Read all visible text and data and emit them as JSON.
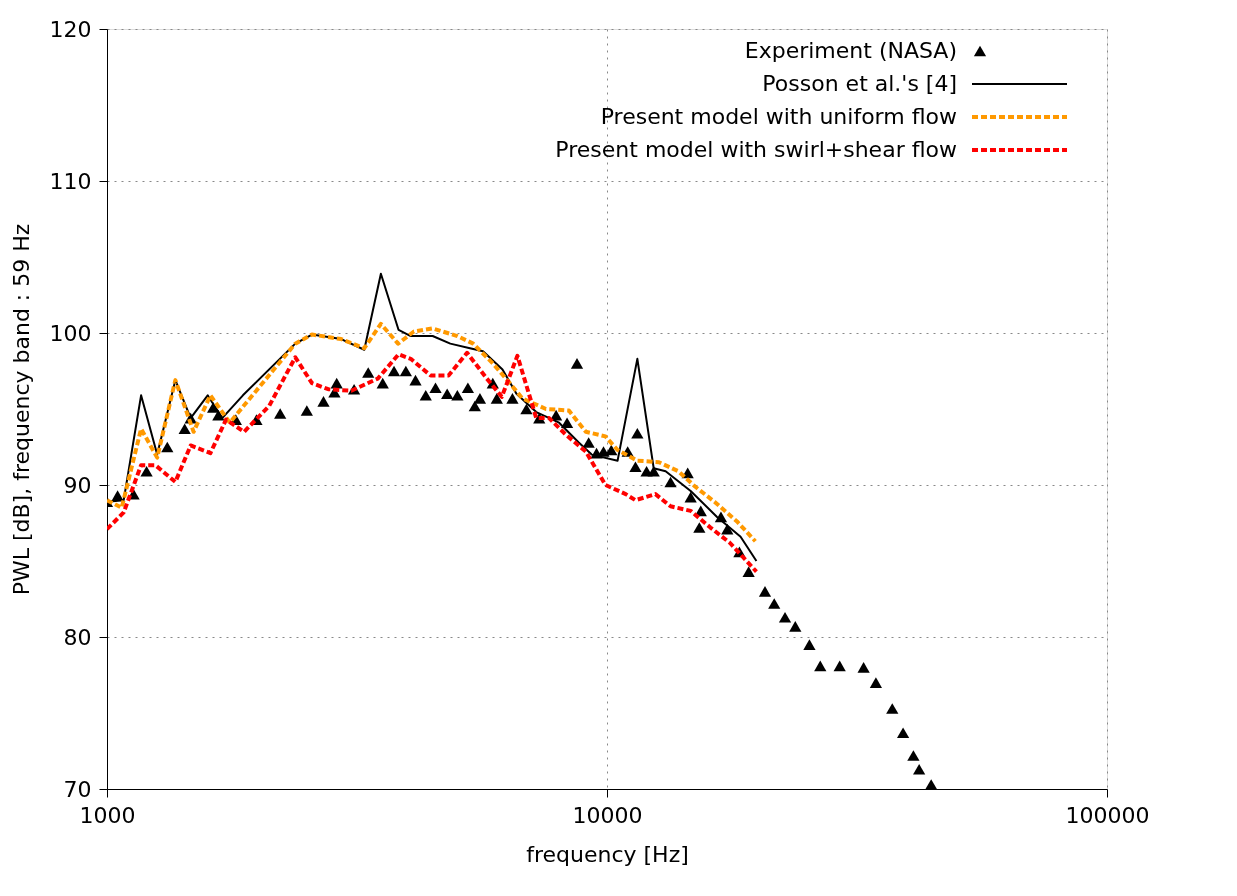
{
  "chart_data": {
    "type": "line",
    "xlabel": "frequency [Hz]",
    "ylabel": "PWL [dB], frequency band : 59 Hz",
    "log": "x",
    "xlim": [
      1000,
      100000
    ],
    "xticks": [
      1000,
      10000,
      100000
    ],
    "ylim": [
      70,
      120
    ],
    "yticks": [
      70,
      80,
      90,
      100,
      110,
      120
    ],
    "grid": true,
    "legend": "top right",
    "series": [
      {
        "name": "Experiment (NASA)",
        "type": "scatter",
        "marker": "triangle",
        "color": "#000000",
        "x": [
          1000,
          1050,
          1130,
          1200,
          1320,
          1430,
          1470,
          1630,
          1670,
          1810,
          1990,
          2220,
          2510,
          2710,
          2850,
          2880,
          3120,
          3330,
          3560,
          3750,
          3960,
          4140,
          4340,
          4540,
          4790,
          5020,
          5270,
          5440,
          5570,
          5910,
          6020,
          6470,
          6900,
          7320,
          7910,
          8320,
          8710,
          9190,
          9530,
          9840,
          10200,
          11000,
          11400,
          11500,
          12000,
          12400,
          13400,
          14500,
          14700,
          15300,
          15400,
          16900,
          17400,
          18400,
          19200,
          20700,
          21600,
          22700,
          23800,
          25400,
          26700,
          29200,
          32600,
          34500,
          37200,
          39100,
          41000,
          42100,
          44500
        ],
        "values": [
          88.9,
          89.3,
          89.4,
          90.9,
          92.5,
          93.7,
          94.4,
          95.1,
          94.6,
          94.3,
          94.3,
          94.7,
          94.9,
          95.5,
          96.1,
          96.7,
          96.3,
          97.4,
          96.7,
          97.5,
          97.5,
          96.9,
          95.9,
          96.4,
          96.0,
          95.9,
          96.4,
          95.2,
          95.7,
          96.7,
          95.7,
          95.7,
          95.0,
          94.4,
          94.6,
          94.1,
          98.0,
          92.8,
          92.1,
          92.2,
          92.3,
          92.2,
          91.2,
          93.4,
          90.9,
          90.9,
          90.2,
          90.8,
          89.2,
          87.2,
          88.3,
          87.9,
          87.1,
          85.6,
          84.3,
          83.0,
          82.2,
          81.3,
          80.7,
          79.5,
          78.1,
          78.1,
          78.0,
          77.0,
          75.3,
          73.7,
          72.2,
          71.3,
          70.3
        ]
      },
      {
        "name": "Posson et al.'s [4]",
        "line_style": "solid",
        "color": "#000000",
        "x": [
          1000,
          1080,
          1170,
          1260,
          1370,
          1470,
          1590,
          1700,
          1870,
          2380,
          2570,
          2940,
          3270,
          3530,
          3830,
          4050,
          4480,
          4860,
          5320,
          5650,
          6180,
          6590,
          7220,
          8020,
          8780,
          9320,
          10500,
          11500,
          12400,
          13100,
          14700,
          16600,
          18500,
          19900
        ],
        "values": [
          88.9,
          89.0,
          95.9,
          92.0,
          96.9,
          94.4,
          95.9,
          94.4,
          95.9,
          99.3,
          99.9,
          99.6,
          98.9,
          103.9,
          100.2,
          99.8,
          99.8,
          99.3,
          99.0,
          98.8,
          97.6,
          96.0,
          94.8,
          94.1,
          92.8,
          92.0,
          91.6,
          98.3,
          91.1,
          90.9,
          89.6,
          87.9,
          86.6,
          85.0
        ]
      },
      {
        "name": "Present model with uniform flow",
        "line_style": "dashed",
        "color": "#ff9900",
        "x": [
          1000,
          1070,
          1170,
          1260,
          1370,
          1490,
          1610,
          1760,
          2380,
          2570,
          2940,
          3270,
          3530,
          3820,
          4110,
          4480,
          5020,
          5400,
          5910,
          6390,
          6770,
          7550,
          8390,
          9070,
          9930,
          10500,
          11500,
          12700,
          13900,
          15000,
          16400,
          18200,
          19800
        ],
        "values": [
          89.0,
          88.5,
          93.7,
          91.8,
          96.9,
          93.5,
          95.9,
          94.1,
          99.3,
          99.9,
          99.6,
          99.0,
          100.6,
          99.3,
          100.1,
          100.3,
          99.8,
          99.3,
          98.0,
          96.7,
          95.7,
          95.0,
          94.9,
          93.5,
          93.2,
          92.3,
          91.6,
          91.5,
          90.9,
          89.9,
          88.9,
          87.6,
          86.3
        ]
      },
      {
        "name": "Present model with swirl+shear flow",
        "line_style": "dashed",
        "color": "#ff0000",
        "x": [
          1000,
          1080,
          1170,
          1250,
          1370,
          1470,
          1610,
          1730,
          1880,
          2110,
          2380,
          2570,
          2770,
          3080,
          3480,
          3830,
          4050,
          4440,
          4820,
          5250,
          5750,
          6160,
          6620,
          7220,
          7660,
          8280,
          9070,
          9930,
          10900,
          11400,
          12500,
          13400,
          14700,
          16100,
          17600,
          19900
        ],
        "values": [
          87.1,
          88.2,
          91.3,
          91.3,
          90.2,
          92.6,
          92.1,
          94.3,
          93.5,
          95.2,
          98.4,
          96.7,
          96.3,
          96.2,
          97.0,
          98.6,
          98.3,
          97.2,
          97.2,
          98.7,
          97.0,
          95.8,
          98.5,
          94.4,
          94.4,
          93.3,
          92.2,
          90.0,
          89.4,
          89.0,
          89.4,
          88.6,
          88.3,
          87.2,
          86.2,
          84.3
        ]
      }
    ]
  }
}
